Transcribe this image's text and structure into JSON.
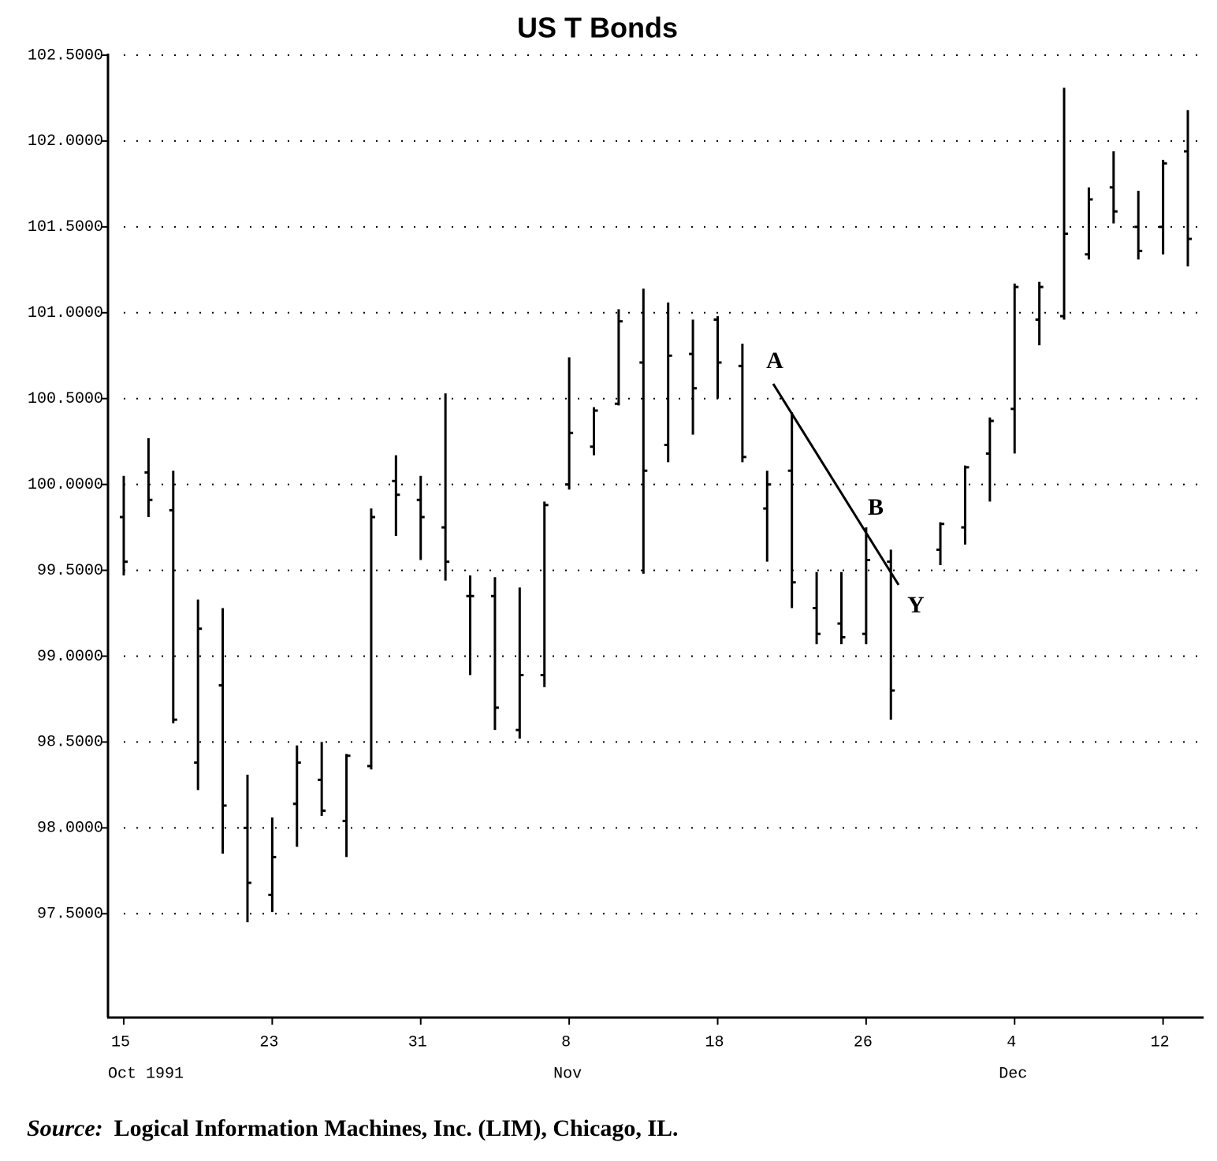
{
  "chart_data": {
    "type": "ohlc",
    "title": "US T Bonds",
    "categories": [
      "15",
      null,
      null,
      null,
      null,
      null,
      "23",
      null,
      null,
      null,
      null,
      null,
      "31",
      null,
      null,
      null,
      null,
      null,
      "8",
      null,
      null,
      null,
      null,
      null,
      "18",
      null,
      null,
      null,
      null,
      null,
      "26",
      null,
      null,
      null,
      null,
      null,
      "4",
      null,
      null,
      null,
      null,
      null,
      "12",
      null
    ],
    "month_labels": [
      "Oct 1991",
      null,
      null,
      null,
      null,
      null,
      null,
      null,
      null,
      null,
      null,
      null,
      null,
      null,
      null,
      null,
      null,
      null,
      "Nov",
      null,
      null,
      null,
      null,
      null,
      null,
      null,
      null,
      null,
      null,
      null,
      null,
      null,
      null,
      null,
      null,
      null,
      "Dec",
      null,
      null,
      null,
      null,
      null,
      null,
      null
    ],
    "color": "#000000",
    "open": [
      99.81,
      100.07,
      99.85,
      98.38,
      98.83,
      98.0,
      97.61,
      98.14,
      98.28,
      98.04,
      98.36,
      100.02,
      99.91,
      99.75,
      99.35,
      99.35,
      98.57,
      98.89,
      100.0,
      100.22,
      100.47,
      100.71,
      100.23,
      100.76,
      100.96,
      100.69,
      99.86,
      100.08,
      99.28,
      99.19,
      99.13,
      99.55,
      null,
      99.62,
      99.75,
      100.18,
      100.44,
      100.96,
      100.98,
      101.34,
      101.73,
      101.5,
      101.5,
      101.94
    ],
    "high": [
      100.05,
      100.27,
      100.08,
      99.33,
      99.28,
      98.31,
      98.06,
      98.48,
      98.5,
      98.43,
      99.86,
      100.17,
      100.05,
      100.53,
      99.47,
      99.46,
      99.4,
      99.9,
      100.74,
      100.45,
      101.02,
      101.14,
      101.06,
      100.96,
      100.98,
      100.82,
      100.08,
      100.42,
      99.49,
      99.49,
      99.75,
      99.62,
      null,
      99.78,
      100.11,
      100.39,
      101.17,
      101.18,
      102.31,
      101.73,
      101.94,
      101.71,
      101.89,
      102.18
    ],
    "low": [
      99.47,
      99.81,
      98.61,
      98.22,
      97.85,
      97.45,
      97.51,
      97.89,
      98.07,
      97.83,
      98.34,
      99.7,
      99.56,
      99.44,
      98.89,
      98.57,
      98.52,
      98.82,
      99.97,
      100.17,
      100.46,
      99.48,
      100.13,
      100.29,
      100.5,
      100.13,
      99.55,
      99.28,
      99.07,
      99.07,
      99.07,
      98.63,
      null,
      99.53,
      99.65,
      99.9,
      100.18,
      100.81,
      100.96,
      101.31,
      101.52,
      101.31,
      101.34,
      101.27
    ],
    "close": [
      99.55,
      99.91,
      98.63,
      99.16,
      98.13,
      97.68,
      97.83,
      98.38,
      98.1,
      98.42,
      99.81,
      99.94,
      99.81,
      99.55,
      99.35,
      98.7,
      98.89,
      99.88,
      100.3,
      100.43,
      100.95,
      100.08,
      100.75,
      100.56,
      100.71,
      100.16,
      100.0,
      99.43,
      99.13,
      99.11,
      99.56,
      98.8,
      null,
      99.77,
      100.1,
      100.37,
      101.15,
      101.15,
      101.46,
      101.66,
      101.59,
      101.36,
      101.87,
      101.43
    ],
    "ylim": [
      96.9,
      102.5
    ],
    "yticks": [
      {
        "value": 102.5,
        "label": "102.5000"
      },
      {
        "value": 102,
        "label": "102.0000"
      },
      {
        "value": 101.5,
        "label": "101.5000"
      },
      {
        "value": 101,
        "label": "101.0000"
      },
      {
        "value": 100.5,
        "label": "100.5000"
      },
      {
        "value": 100,
        "label": "100.0000"
      },
      {
        "value": 99.5,
        "label": "99.5000"
      },
      {
        "value": 99,
        "label": "99.0000"
      },
      {
        "value": 98.5,
        "label": "98.5000"
      },
      {
        "value": 98,
        "label": "98.0000"
      },
      {
        "value": 97.5,
        "label": "97.5000"
      }
    ],
    "grid": true,
    "annotations": [
      "A",
      "B",
      "Y"
    ],
    "source_label": "Source:",
    "source_text": "Logical Information Machines, Inc. (LIM), Chicago, IL."
  }
}
